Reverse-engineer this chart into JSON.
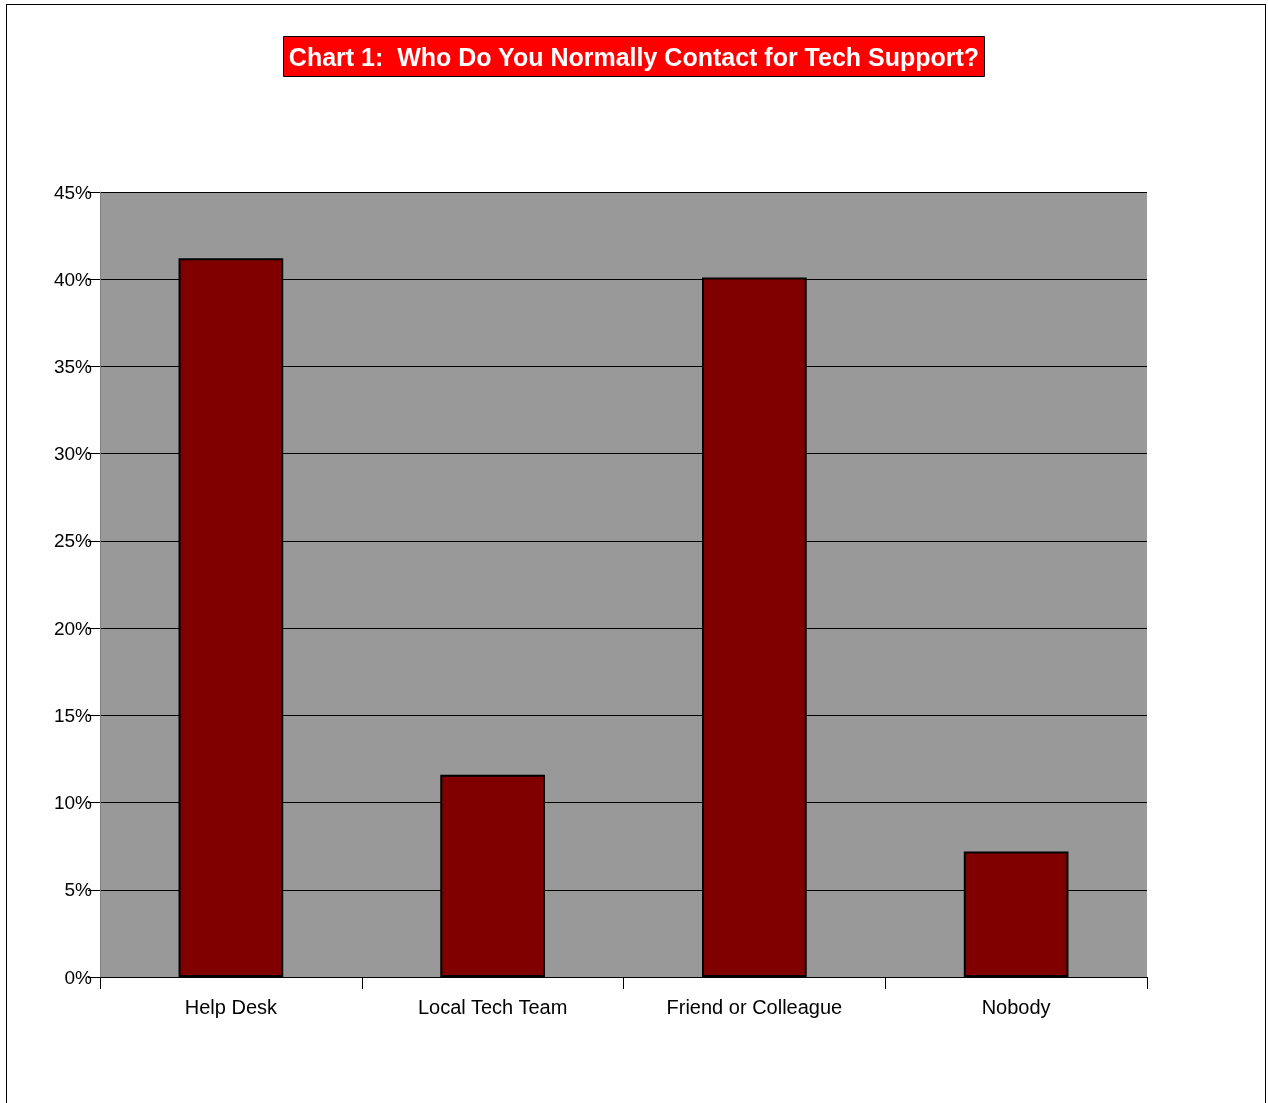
{
  "chart_data": {
    "type": "bar",
    "title": "Chart 1:  Who Do You Normally Contact for Tech Support?",
    "categories": [
      "Help Desk",
      "Local Tech Team",
      "Friend or Colleague",
      "Nobody"
    ],
    "values": [
      41.2,
      11.6,
      40.1,
      7.2
    ],
    "color": "#800000",
    "ylim": [
      0,
      45
    ],
    "yticks": [
      {
        "value": 0,
        "label": "0%"
      },
      {
        "value": 5,
        "label": "5%"
      },
      {
        "value": 10,
        "label": "10%"
      },
      {
        "value": 15,
        "label": "15%"
      },
      {
        "value": 20,
        "label": "20%"
      },
      {
        "value": 25,
        "label": "25%"
      },
      {
        "value": 30,
        "label": "30%"
      },
      {
        "value": 35,
        "label": "35%"
      },
      {
        "value": 40,
        "label": "40%"
      },
      {
        "value": 45,
        "label": "45%"
      }
    ],
    "grid": "y"
  }
}
